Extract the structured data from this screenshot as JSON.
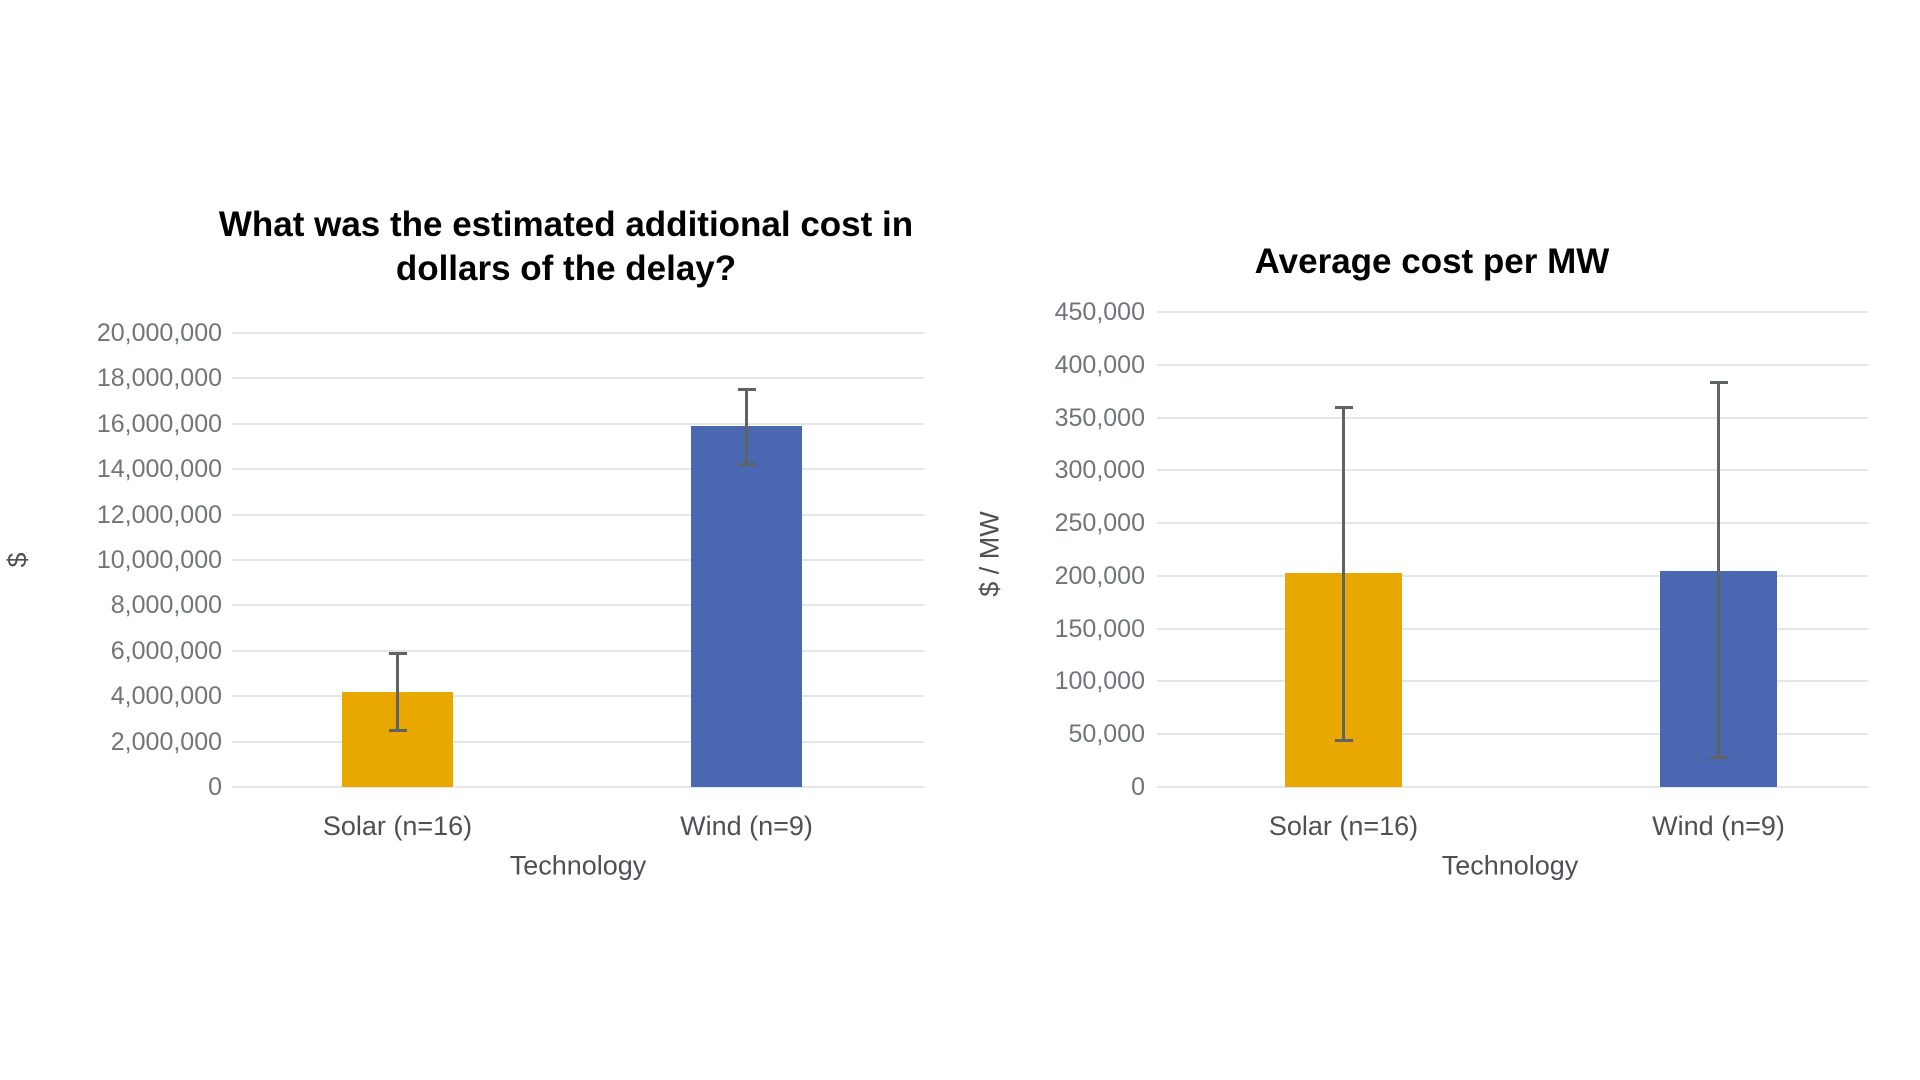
{
  "colors": {
    "background": "#FFFFFF",
    "title": "#000000",
    "tick_label": "#70757A",
    "axis_label": "#4D5156",
    "gridline": "#E6E6E6",
    "error_bar": "#5F6368",
    "solar_bar": "#E8A800",
    "wind_bar": "#4A68B2"
  },
  "chart_data": [
    {
      "type": "bar",
      "title": "What was the estimated additional cost in dollars of the delay?",
      "xlabel": "Technology",
      "ylabel": "$",
      "categories": [
        "Solar (n=16)",
        "Wind (n=9)"
      ],
      "values": [
        4200000,
        15900000
      ],
      "error_low": [
        2500000,
        14200000
      ],
      "error_high": [
        5900000,
        17500000
      ],
      "ylim": [
        0,
        20000000
      ],
      "ytick_step": 2000000,
      "ytick_labels": [
        "0",
        "2,000,000",
        "4,000,000",
        "6,000,000",
        "8,000,000",
        "10,000,000",
        "12,000,000",
        "14,000,000",
        "16,000,000",
        "18,000,000",
        "20,000,000"
      ],
      "grid": true,
      "legend": "none",
      "bar_colors": [
        "#E8A800",
        "#4A68B2"
      ]
    },
    {
      "type": "bar",
      "title": "Average cost per MW",
      "xlabel": "Technology",
      "ylabel": "$ / MW",
      "categories": [
        "Solar (n=16)",
        "Wind (n=9)"
      ],
      "values": [
        203000,
        205000
      ],
      "error_low": [
        44000,
        28000
      ],
      "error_high": [
        360000,
        383000
      ],
      "ylim": [
        0,
        450000
      ],
      "ytick_step": 50000,
      "ytick_labels": [
        "0",
        "50,000",
        "100,000",
        "150,000",
        "200,000",
        "250,000",
        "300,000",
        "350,000",
        "400,000",
        "450,000"
      ],
      "grid": true,
      "legend": "none",
      "bar_colors": [
        "#E8A800",
        "#4A68B2"
      ]
    }
  ]
}
